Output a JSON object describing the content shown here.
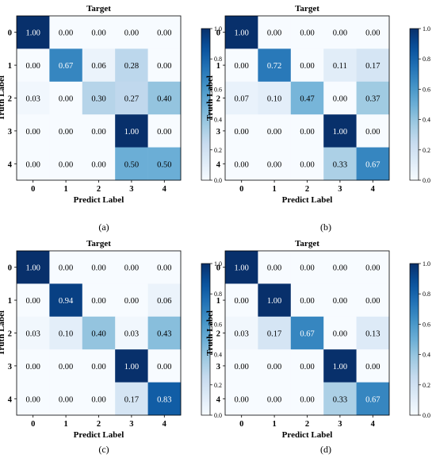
{
  "figure": {
    "colors": {
      "low": "#f7fbff",
      "high": "#08306b",
      "text_dark": "#000000",
      "text_light": "#ffffff",
      "frame": "#000000"
    },
    "colorbar_ticks": [
      "0.0",
      "0.2",
      "0.4",
      "0.6",
      "0.8",
      "1.0"
    ]
  },
  "chart_data": [
    {
      "type": "heatmap",
      "title": "Target",
      "xlabel": "Predict Label",
      "ylabel": "Truth Label",
      "x_categories": [
        "0",
        "1",
        "2",
        "3",
        "4"
      ],
      "y_categories": [
        "0",
        "1",
        "2",
        "3",
        "4"
      ],
      "values": [
        [
          1.0,
          0.0,
          0.0,
          0.0,
          0.0
        ],
        [
          0.0,
          0.67,
          0.06,
          0.28,
          0.0
        ],
        [
          0.03,
          0.0,
          0.3,
          0.27,
          0.4
        ],
        [
          0.0,
          0.0,
          0.0,
          1.0,
          0.0
        ],
        [
          0.0,
          0.0,
          0.0,
          0.5,
          0.5
        ]
      ],
      "colorbar_range": [
        0.0,
        1.0
      ],
      "caption": "(a)"
    },
    {
      "type": "heatmap",
      "title": "Target",
      "xlabel": "Predict Label",
      "ylabel": "Truth Label",
      "x_categories": [
        "0",
        "1",
        "2",
        "3",
        "4"
      ],
      "y_categories": [
        "0",
        "1",
        "2",
        "3",
        "4"
      ],
      "values": [
        [
          1.0,
          0.0,
          0.0,
          0.0,
          0.0
        ],
        [
          0.0,
          0.72,
          0.0,
          0.11,
          0.17
        ],
        [
          0.07,
          0.1,
          0.47,
          0.0,
          0.37
        ],
        [
          0.0,
          0.0,
          0.0,
          1.0,
          0.0
        ],
        [
          0.0,
          0.0,
          0.0,
          0.33,
          0.67
        ]
      ],
      "colorbar_range": [
        0.0,
        1.0
      ],
      "caption": "(b)"
    },
    {
      "type": "heatmap",
      "title": "Target",
      "xlabel": "Predict Label",
      "ylabel": "Truth Label",
      "x_categories": [
        "0",
        "1",
        "2",
        "3",
        "4"
      ],
      "y_categories": [
        "0",
        "1",
        "2",
        "3",
        "4"
      ],
      "values": [
        [
          1.0,
          0.0,
          0.0,
          0.0,
          0.0
        ],
        [
          0.0,
          0.94,
          0.0,
          0.0,
          0.06
        ],
        [
          0.03,
          0.1,
          0.4,
          0.03,
          0.43
        ],
        [
          0.0,
          0.0,
          0.0,
          1.0,
          0.0
        ],
        [
          0.0,
          0.0,
          0.0,
          0.17,
          0.83
        ]
      ],
      "colorbar_range": [
        0.0,
        1.0
      ],
      "caption": "(c)"
    },
    {
      "type": "heatmap",
      "title": "Target",
      "xlabel": "Predict Label",
      "ylabel": "Truth Label",
      "x_categories": [
        "0",
        "1",
        "2",
        "3",
        "4"
      ],
      "y_categories": [
        "0",
        "1",
        "2",
        "3",
        "4"
      ],
      "values": [
        [
          1.0,
          0.0,
          0.0,
          0.0,
          0.0
        ],
        [
          0.0,
          1.0,
          0.0,
          0.0,
          0.0
        ],
        [
          0.03,
          0.17,
          0.67,
          0.0,
          0.13
        ],
        [
          0.0,
          0.0,
          0.0,
          1.0,
          0.0
        ],
        [
          0.0,
          0.0,
          0.0,
          0.33,
          0.67
        ]
      ],
      "colorbar_range": [
        0.0,
        1.0
      ],
      "caption": "(d)"
    }
  ]
}
